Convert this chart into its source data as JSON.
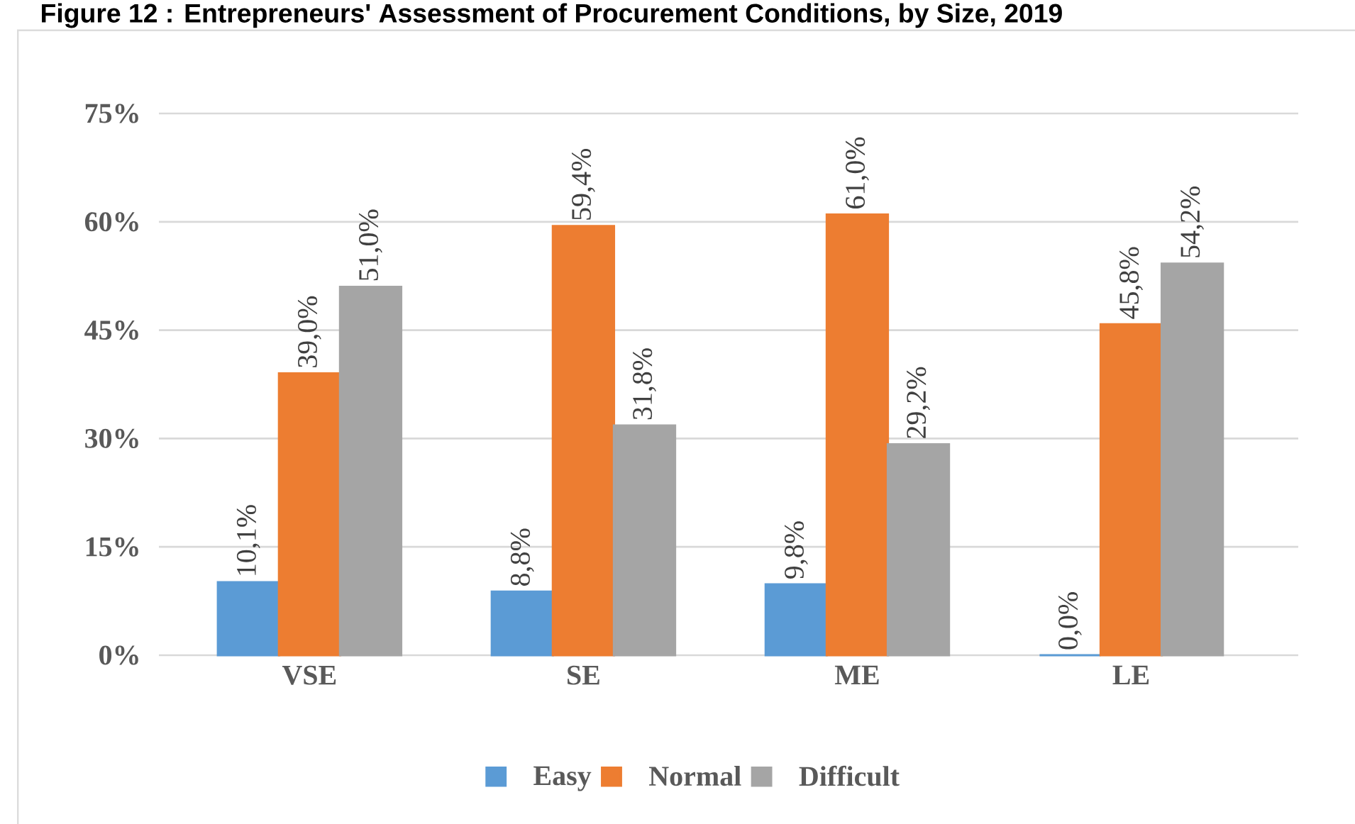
{
  "chart_data": {
    "type": "bar",
    "title": "Figure 12 : Entrepreneurs' Assessment of Procurement Conditions, by Size, 2019",
    "categories": [
      "VSE",
      "SE",
      "ME",
      "LE"
    ],
    "series": [
      {
        "name": "Easy",
        "color": "#5b9bd5",
        "values": [
          10.1,
          8.8,
          9.8,
          0.0
        ],
        "value_labels": [
          "10,1%",
          "8,8%",
          "9,8%",
          "0,0%"
        ]
      },
      {
        "name": "Normal",
        "color": "#ed7d31",
        "values": [
          39.0,
          59.4,
          61.0,
          45.8
        ],
        "value_labels": [
          "39,0%",
          "59,4%",
          "61,0%",
          "45,8%"
        ]
      },
      {
        "name": "Difficult",
        "color": "#a5a5a5",
        "values": [
          51.0,
          31.8,
          29.2,
          54.2
        ],
        "value_labels": [
          "51,0%",
          "31,8%",
          "29,2%",
          "54,2%"
        ]
      }
    ],
    "ylim": [
      0,
      75
    ],
    "yticks": [
      {
        "value": 0,
        "label": "0%"
      },
      {
        "value": 15,
        "label": "15%"
      },
      {
        "value": 30,
        "label": "30%"
      },
      {
        "value": 45,
        "label": "45%"
      },
      {
        "value": 60,
        "label": "60%"
      },
      {
        "value": 75,
        "label": "75%"
      }
    ],
    "grid": "y",
    "legend": "bottom"
  }
}
